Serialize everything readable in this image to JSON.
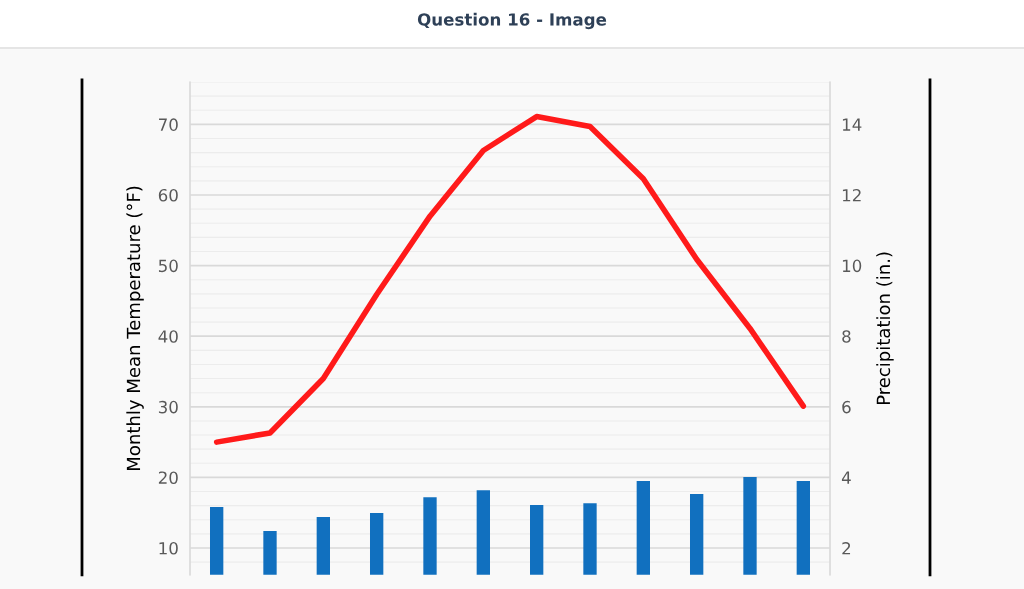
{
  "chart_data": {
    "type": "bar",
    "title": "Question 16 - Image",
    "ylabel": "Monthly Mean Temperature (°F)",
    "y2label": "Precipitation (in.)",
    "categories": [
      null,
      null,
      null,
      null,
      null,
      null,
      null,
      null,
      null,
      null,
      null,
      null
    ],
    "series": [
      {
        "axis": "y2",
        "color": "#1170bf",
        "values": [
          3.16,
          2.48,
          2.88,
          2.99,
          3.44,
          3.64,
          3.22,
          3.27,
          3.9,
          3.53,
          4.01,
          3.9
        ]
      },
      {
        "type": "line",
        "axis": "y",
        "color": "#ff1a1a",
        "values": [
          25.0,
          26.3,
          34.0,
          45.9,
          57.0,
          66.3,
          71.1,
          69.7,
          62.3,
          50.9,
          41.1,
          30.1
        ]
      }
    ],
    "ylim": [
      6.2,
      76
    ],
    "yticks": [
      {
        "value": 8,
        "label": null
      },
      10,
      {
        "value": 12,
        "label": null
      },
      {
        "value": 14,
        "label": null
      },
      {
        "value": 16,
        "label": null
      },
      {
        "value": 18,
        "label": null
      },
      20,
      {
        "value": 22,
        "label": null
      },
      {
        "value": 24,
        "label": null
      },
      {
        "value": 26,
        "label": null
      },
      {
        "value": 28,
        "label": null
      },
      30,
      {
        "value": 32,
        "label": null
      },
      {
        "value": 34,
        "label": null
      },
      {
        "value": 36,
        "label": null
      },
      {
        "value": 38,
        "label": null
      },
      40,
      {
        "value": 42,
        "label": null
      },
      {
        "value": 44,
        "label": null
      },
      {
        "value": 46,
        "label": null
      },
      {
        "value": 48,
        "label": null
      },
      50,
      {
        "value": 52,
        "label": null
      },
      {
        "value": 54,
        "label": null
      },
      {
        "value": 56,
        "label": null
      },
      {
        "value": 58,
        "label": null
      },
      60,
      {
        "value": 62,
        "label": null
      },
      {
        "value": 64,
        "label": null
      },
      {
        "value": 66,
        "label": null
      },
      {
        "value": 68,
        "label": null
      },
      70,
      {
        "value": 72,
        "label": null
      },
      {
        "value": 74,
        "label": null
      },
      {
        "value": 76,
        "label": null
      }
    ],
    "y2lim": [
      1.24,
      15.2
    ],
    "y2ticks": [
      2,
      4,
      6,
      8,
      10,
      12,
      14
    ],
    "grid": "y",
    "line_style": "solid",
    "marker": "none"
  }
}
